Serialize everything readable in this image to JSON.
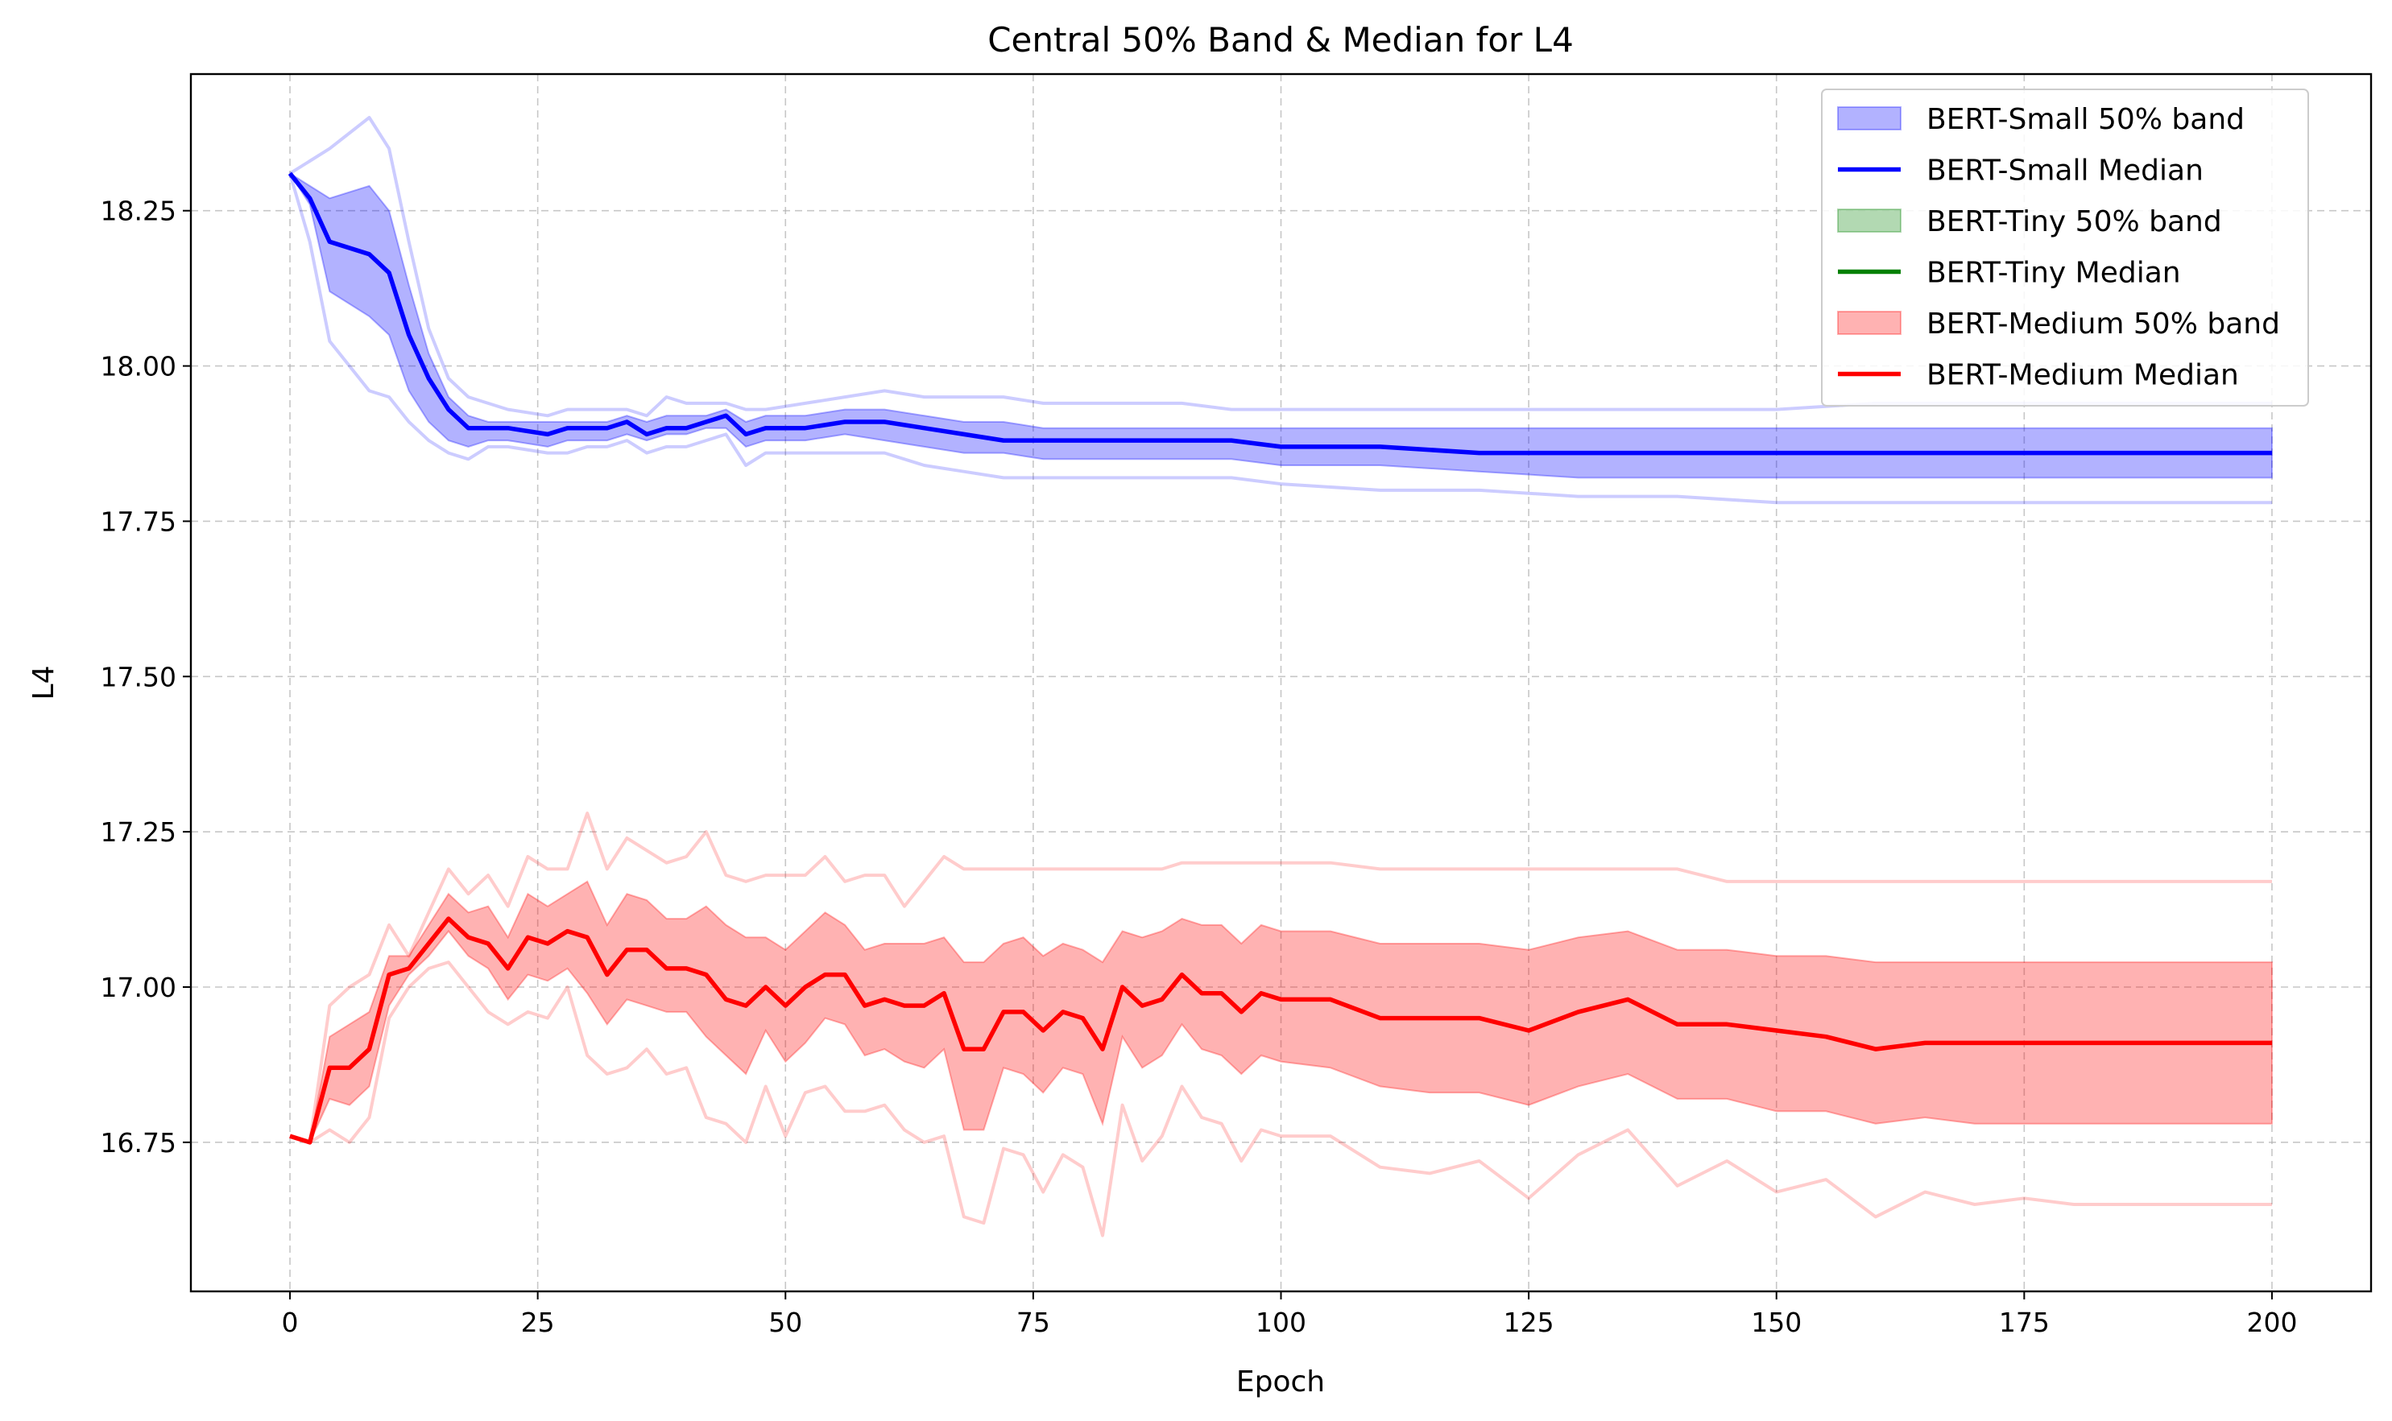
{
  "chart_data": {
    "type": "line",
    "title": "Central 50% Band & Median for L4",
    "xlabel": "Epoch",
    "ylabel": "L4",
    "xlim": [
      -10,
      210
    ],
    "ylim": [
      16.51,
      18.47
    ],
    "x_ticks": [
      0,
      25,
      50,
      75,
      100,
      125,
      150,
      175,
      200
    ],
    "x_tick_labels": [
      "0",
      "25",
      "50",
      "75",
      "100",
      "125",
      "150",
      "175",
      "200"
    ],
    "y_ticks": [
      16.75,
      17.0,
      17.25,
      17.5,
      17.75,
      18.0,
      18.25
    ],
    "y_tick_labels": [
      "16.75",
      "17.00",
      "17.25",
      "17.50",
      "17.75",
      "18.00",
      "18.25"
    ],
    "grid": true,
    "legend_position": "top-right",
    "legend": [
      {
        "label": "BERT-Small 50% band",
        "kind": "band",
        "color": "#0000ff"
      },
      {
        "label": "BERT-Small Median",
        "kind": "line",
        "color": "#0000ff"
      },
      {
        "label": "BERT-Tiny 50% band",
        "kind": "band",
        "color": "#008000"
      },
      {
        "label": "BERT-Tiny Median",
        "kind": "line",
        "color": "#008000"
      },
      {
        "label": "BERT-Medium 50% band",
        "kind": "band",
        "color": "#ff0000"
      },
      {
        "label": "BERT-Medium Median",
        "kind": "line",
        "color": "#ff0000"
      }
    ],
    "series": [
      {
        "name": "BERT-Small",
        "color": "#0000ff",
        "x": [
          0,
          2,
          4,
          8,
          10,
          12,
          14,
          16,
          18,
          20,
          22,
          26,
          28,
          30,
          32,
          34,
          36,
          38,
          40,
          42,
          44,
          46,
          48,
          52,
          56,
          60,
          64,
          68,
          72,
          76,
          80,
          85,
          90,
          95,
          100,
          110,
          120,
          130,
          140,
          150,
          160,
          170,
          180,
          190,
          200
        ],
        "median": [
          18.31,
          18.27,
          18.2,
          18.18,
          18.15,
          18.05,
          17.98,
          17.93,
          17.9,
          17.9,
          17.9,
          17.89,
          17.9,
          17.9,
          17.9,
          17.91,
          17.89,
          17.9,
          17.9,
          17.91,
          17.92,
          17.89,
          17.9,
          17.9,
          17.91,
          17.91,
          17.9,
          17.89,
          17.88,
          17.88,
          17.88,
          17.88,
          17.88,
          17.88,
          17.87,
          17.87,
          17.86,
          17.86,
          17.86,
          17.86,
          17.86,
          17.86,
          17.86,
          17.86,
          17.86
        ],
        "q25": [
          18.31,
          18.26,
          18.12,
          18.08,
          18.05,
          17.96,
          17.91,
          17.88,
          17.87,
          17.88,
          17.88,
          17.87,
          17.88,
          17.88,
          17.88,
          17.89,
          17.88,
          17.89,
          17.89,
          17.9,
          17.9,
          17.87,
          17.88,
          17.88,
          17.89,
          17.88,
          17.87,
          17.86,
          17.86,
          17.85,
          17.85,
          17.85,
          17.85,
          17.85,
          17.84,
          17.84,
          17.83,
          17.82,
          17.82,
          17.82,
          17.82,
          17.82,
          17.82,
          17.82,
          17.82
        ],
        "q75": [
          18.31,
          18.29,
          18.27,
          18.29,
          18.25,
          18.13,
          18.02,
          17.95,
          17.92,
          17.91,
          17.91,
          17.91,
          17.91,
          17.91,
          17.91,
          17.92,
          17.91,
          17.92,
          17.92,
          17.92,
          17.93,
          17.91,
          17.92,
          17.92,
          17.93,
          17.93,
          17.92,
          17.91,
          17.91,
          17.9,
          17.9,
          17.9,
          17.9,
          17.9,
          17.9,
          17.9,
          17.9,
          17.9,
          17.9,
          17.9,
          17.9,
          17.9,
          17.9,
          17.9,
          17.9
        ],
        "min": [
          18.31,
          18.2,
          18.04,
          17.96,
          17.95,
          17.91,
          17.88,
          17.86,
          17.85,
          17.87,
          17.87,
          17.86,
          17.86,
          17.87,
          17.87,
          17.88,
          17.86,
          17.87,
          17.87,
          17.88,
          17.89,
          17.84,
          17.86,
          17.86,
          17.86,
          17.86,
          17.84,
          17.83,
          17.82,
          17.82,
          17.82,
          17.82,
          17.82,
          17.82,
          17.81,
          17.8,
          17.8,
          17.79,
          17.79,
          17.78,
          17.78,
          17.78,
          17.78,
          17.78,
          17.78
        ],
        "max": [
          18.31,
          18.33,
          18.35,
          18.4,
          18.35,
          18.2,
          18.06,
          17.98,
          17.95,
          17.94,
          17.93,
          17.92,
          17.93,
          17.93,
          17.93,
          17.93,
          17.92,
          17.95,
          17.94,
          17.94,
          17.94,
          17.93,
          17.93,
          17.94,
          17.95,
          17.96,
          17.95,
          17.95,
          17.95,
          17.94,
          17.94,
          17.94,
          17.94,
          17.93,
          17.93,
          17.93,
          17.93,
          17.93,
          17.93,
          17.93,
          17.94,
          17.94,
          17.94,
          17.94,
          17.94
        ]
      },
      {
        "name": "BERT-Tiny",
        "color": "#008000",
        "x": [],
        "median": [],
        "q25": [],
        "q75": [],
        "min": [],
        "max": []
      },
      {
        "name": "BERT-Medium",
        "color": "#ff0000",
        "x": [
          0,
          2,
          4,
          6,
          8,
          10,
          12,
          14,
          16,
          18,
          20,
          22,
          24,
          26,
          28,
          30,
          32,
          34,
          36,
          38,
          40,
          42,
          44,
          46,
          48,
          50,
          52,
          54,
          56,
          58,
          60,
          62,
          64,
          66,
          68,
          70,
          72,
          74,
          76,
          78,
          80,
          82,
          84,
          86,
          88,
          90,
          92,
          94,
          96,
          98,
          100,
          105,
          110,
          115,
          120,
          125,
          130,
          135,
          140,
          145,
          150,
          155,
          160,
          165,
          170,
          175,
          180,
          185,
          190,
          195,
          200
        ],
        "median": [
          16.76,
          16.75,
          16.87,
          16.87,
          16.9,
          17.02,
          17.03,
          17.07,
          17.11,
          17.08,
          17.07,
          17.03,
          17.08,
          17.07,
          17.09,
          17.08,
          17.02,
          17.06,
          17.06,
          17.03,
          17.03,
          17.02,
          16.98,
          16.97,
          17.0,
          16.97,
          17.0,
          17.02,
          17.02,
          16.97,
          16.98,
          16.97,
          16.97,
          16.99,
          16.9,
          16.9,
          16.96,
          16.96,
          16.93,
          16.96,
          16.95,
          16.9,
          17.0,
          16.97,
          16.98,
          17.02,
          16.99,
          16.99,
          16.96,
          16.99,
          16.98,
          16.98,
          16.95,
          16.95,
          16.95,
          16.93,
          16.96,
          16.98,
          16.94,
          16.94,
          16.93,
          16.92,
          16.9,
          16.91,
          16.91,
          16.91,
          16.91,
          16.91,
          16.91,
          16.91,
          16.91
        ],
        "q25": [
          16.76,
          16.75,
          16.82,
          16.81,
          16.84,
          16.97,
          17.02,
          17.05,
          17.09,
          17.05,
          17.03,
          16.98,
          17.02,
          17.01,
          17.03,
          16.99,
          16.94,
          16.98,
          16.97,
          16.96,
          16.96,
          16.92,
          16.89,
          16.86,
          16.93,
          16.88,
          16.91,
          16.95,
          16.94,
          16.89,
          16.9,
          16.88,
          16.87,
          16.9,
          16.77,
          16.77,
          16.87,
          16.86,
          16.83,
          16.87,
          16.86,
          16.78,
          16.92,
          16.87,
          16.89,
          16.94,
          16.9,
          16.89,
          16.86,
          16.89,
          16.88,
          16.87,
          16.84,
          16.83,
          16.83,
          16.81,
          16.84,
          16.86,
          16.82,
          16.82,
          16.8,
          16.8,
          16.78,
          16.79,
          16.78,
          16.78,
          16.78,
          16.78,
          16.78,
          16.78,
          16.78
        ],
        "q75": [
          16.76,
          16.75,
          16.92,
          16.94,
          16.96,
          17.05,
          17.05,
          17.1,
          17.15,
          17.12,
          17.13,
          17.08,
          17.15,
          17.13,
          17.15,
          17.17,
          17.1,
          17.15,
          17.14,
          17.11,
          17.11,
          17.13,
          17.1,
          17.08,
          17.08,
          17.06,
          17.09,
          17.12,
          17.1,
          17.06,
          17.07,
          17.07,
          17.07,
          17.08,
          17.04,
          17.04,
          17.07,
          17.08,
          17.05,
          17.07,
          17.06,
          17.04,
          17.09,
          17.08,
          17.09,
          17.11,
          17.1,
          17.1,
          17.07,
          17.1,
          17.09,
          17.09,
          17.07,
          17.07,
          17.07,
          17.06,
          17.08,
          17.09,
          17.06,
          17.06,
          17.05,
          17.05,
          17.04,
          17.04,
          17.04,
          17.04,
          17.04,
          17.04,
          17.04,
          17.04,
          17.04
        ],
        "min": [
          16.76,
          16.75,
          16.77,
          16.75,
          16.79,
          16.95,
          17.0,
          17.03,
          17.04,
          17.0,
          16.96,
          16.94,
          16.96,
          16.95,
          17.0,
          16.89,
          16.86,
          16.87,
          16.9,
          16.86,
          16.87,
          16.79,
          16.78,
          16.75,
          16.84,
          16.76,
          16.83,
          16.84,
          16.8,
          16.8,
          16.81,
          16.77,
          16.75,
          16.76,
          16.63,
          16.62,
          16.74,
          16.73,
          16.67,
          16.73,
          16.71,
          16.6,
          16.81,
          16.72,
          16.76,
          16.84,
          16.79,
          16.78,
          16.72,
          16.77,
          16.76,
          16.76,
          16.71,
          16.7,
          16.72,
          16.66,
          16.73,
          16.77,
          16.68,
          16.72,
          16.67,
          16.69,
          16.63,
          16.67,
          16.65,
          16.66,
          16.65,
          16.65,
          16.65,
          16.65,
          16.65
        ],
        "max": [
          16.76,
          16.75,
          16.97,
          17.0,
          17.02,
          17.1,
          17.05,
          17.12,
          17.19,
          17.15,
          17.18,
          17.13,
          17.21,
          17.19,
          17.19,
          17.28,
          17.19,
          17.24,
          17.22,
          17.2,
          17.21,
          17.25,
          17.18,
          17.17,
          17.18,
          17.18,
          17.18,
          17.21,
          17.17,
          17.18,
          17.18,
          17.13,
          17.17,
          17.21,
          17.19,
          17.19,
          17.19,
          17.19,
          17.19,
          17.19,
          17.19,
          17.19,
          17.19,
          17.19,
          17.19,
          17.2,
          17.2,
          17.2,
          17.2,
          17.2,
          17.2,
          17.2,
          17.19,
          17.19,
          17.19,
          17.19,
          17.19,
          17.19,
          17.19,
          17.17,
          17.17,
          17.17,
          17.17,
          17.17,
          17.17,
          17.17,
          17.17,
          17.17,
          17.17,
          17.17,
          17.17
        ]
      }
    ]
  }
}
